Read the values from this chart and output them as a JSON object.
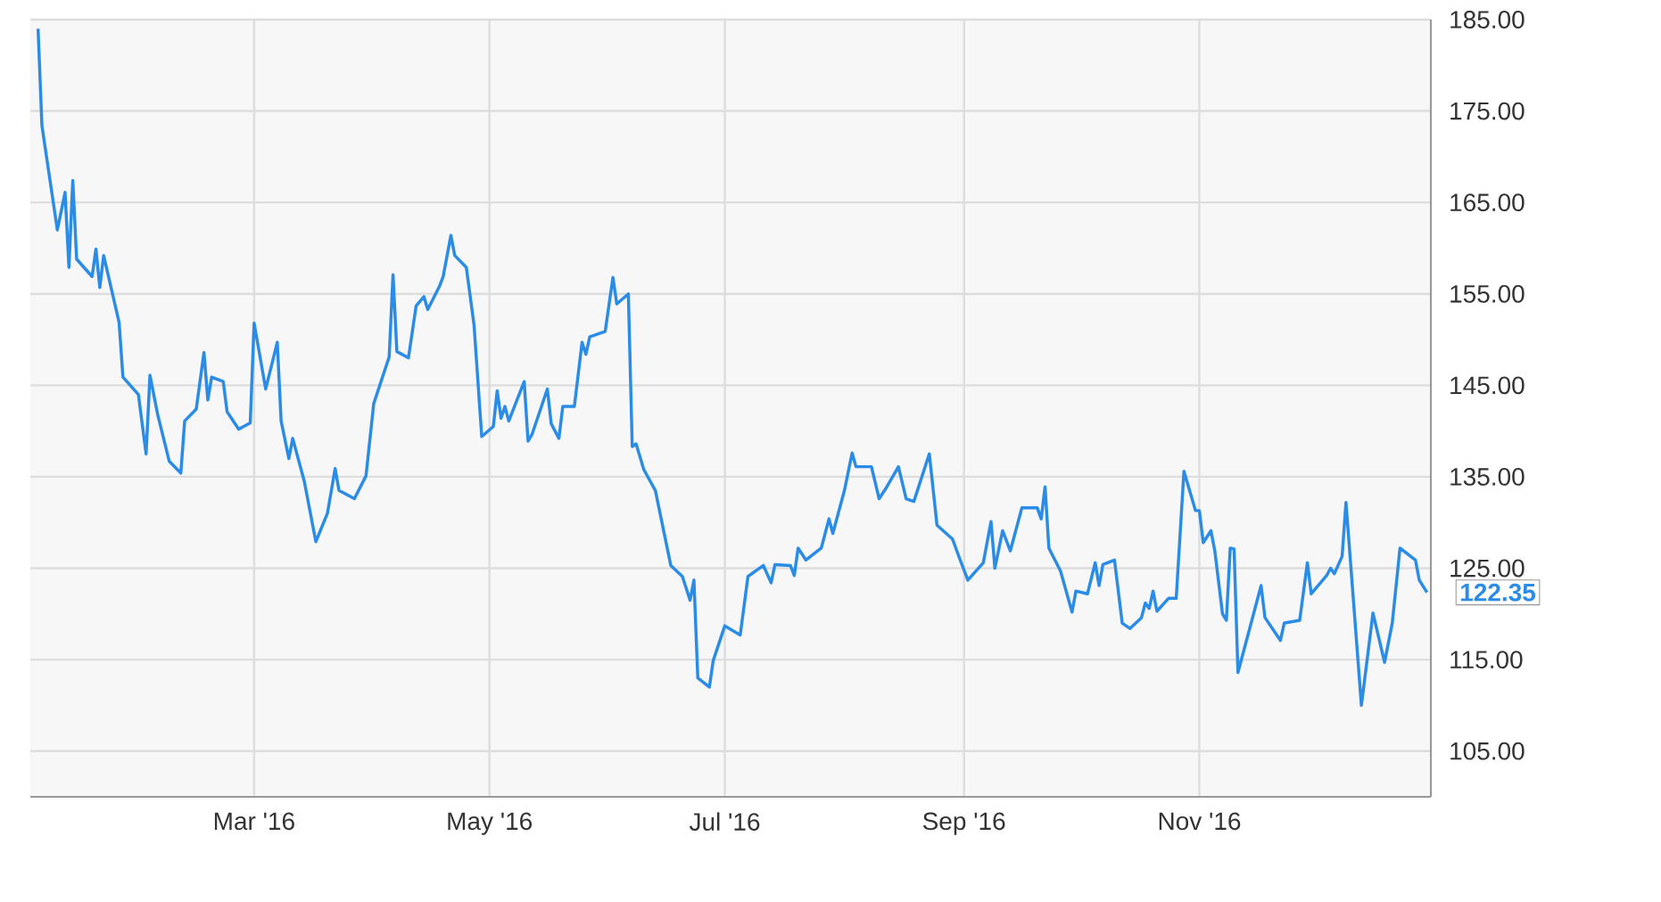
{
  "chart_data": {
    "type": "line",
    "x": [
      "2016-01-05",
      "2016-01-06",
      "2016-01-08",
      "2016-01-10",
      "2016-01-12",
      "2016-01-13",
      "2016-01-14",
      "2016-01-15",
      "2016-01-19",
      "2016-01-20",
      "2016-01-21",
      "2016-01-22",
      "2016-01-26",
      "2016-01-27",
      "2016-01-31",
      "2016-02-02",
      "2016-02-03",
      "2016-02-05",
      "2016-02-08",
      "2016-02-11",
      "2016-02-12",
      "2016-02-15",
      "2016-02-17",
      "2016-02-18",
      "2016-02-19",
      "2016-02-22",
      "2016-02-23",
      "2016-02-26",
      "2016-02-29",
      "2016-03-01",
      "2016-03-04",
      "2016-03-07",
      "2016-03-08",
      "2016-03-10",
      "2016-03-11",
      "2016-03-14",
      "2016-03-17",
      "2016-03-20",
      "2016-03-22",
      "2016-03-23",
      "2016-03-27",
      "2016-03-30",
      "2016-04-01",
      "2016-04-05",
      "2016-04-06",
      "2016-04-07",
      "2016-04-10",
      "2016-04-12",
      "2016-04-14",
      "2016-04-15",
      "2016-04-18",
      "2016-04-19",
      "2016-04-21",
      "2016-04-22",
      "2016-04-25",
      "2016-04-27",
      "2016-04-29",
      "2016-05-02",
      "2016-05-03",
      "2016-05-04",
      "2016-05-05",
      "2016-05-06",
      "2016-05-10",
      "2016-05-11",
      "2016-05-12",
      "2016-05-16",
      "2016-05-17",
      "2016-05-19",
      "2016-05-20",
      "2016-05-23",
      "2016-05-25",
      "2016-05-26",
      "2016-05-27",
      "2016-05-31",
      "2016-06-02",
      "2016-06-03",
      "2016-06-06",
      "2016-06-07",
      "2016-06-08",
      "2016-06-10",
      "2016-06-13",
      "2016-06-17",
      "2016-06-20",
      "2016-06-22",
      "2016-06-23",
      "2016-06-24",
      "2016-06-27",
      "2016-06-28",
      "2016-07-01",
      "2016-07-05",
      "2016-07-07",
      "2016-07-11",
      "2016-07-13",
      "2016-07-14",
      "2016-07-18",
      "2016-07-19",
      "2016-07-20",
      "2016-07-22",
      "2016-07-26",
      "2016-07-28",
      "2016-07-29",
      "2016-08-01",
      "2016-08-03",
      "2016-08-04",
      "2016-08-08",
      "2016-08-10",
      "2016-08-12",
      "2016-08-15",
      "2016-08-17",
      "2016-08-19",
      "2016-08-23",
      "2016-08-25",
      "2016-08-29",
      "2016-08-31",
      "2016-09-02",
      "2016-09-06",
      "2016-09-08",
      "2016-09-09",
      "2016-09-11",
      "2016-09-13",
      "2016-09-16",
      "2016-09-20",
      "2016-09-21",
      "2016-09-22",
      "2016-09-23",
      "2016-09-26",
      "2016-09-29",
      "2016-09-30",
      "2016-10-03",
      "2016-10-05",
      "2016-10-06",
      "2016-10-07",
      "2016-10-10",
      "2016-10-12",
      "2016-10-14",
      "2016-10-17",
      "2016-10-18",
      "2016-10-19",
      "2016-10-20",
      "2016-10-21",
      "2016-10-24",
      "2016-10-26",
      "2016-10-28",
      "2016-10-31",
      "2016-11-01",
      "2016-11-02",
      "2016-11-04",
      "2016-11-05",
      "2016-11-07",
      "2016-11-08",
      "2016-11-09",
      "2016-11-10",
      "2016-11-11",
      "2016-11-17",
      "2016-11-18",
      "2016-11-22",
      "2016-11-23",
      "2016-11-27",
      "2016-11-29",
      "2016-11-30",
      "2016-12-04",
      "2016-12-05",
      "2016-12-06",
      "2016-12-08",
      "2016-12-09",
      "2016-12-13",
      "2016-12-16",
      "2016-12-19",
      "2016-12-21",
      "2016-12-23",
      "2016-12-27",
      "2016-12-28",
      "2016-12-30"
    ],
    "series": [
      {
        "color": "#2a8ce6",
        "values": [
          184.0,
          173.4,
          167.7,
          162.0,
          166.1,
          157.9,
          167.4,
          158.8,
          156.9,
          159.9,
          155.7,
          159.2,
          151.9,
          145.9,
          144.0,
          137.5,
          146.1,
          141.8,
          136.7,
          135.4,
          141.1,
          142.4,
          148.6,
          143.4,
          145.9,
          145.4,
          142.1,
          140.2,
          140.9,
          151.8,
          144.6,
          149.7,
          141.1,
          137.0,
          139.2,
          134.5,
          127.9,
          131.0,
          135.9,
          133.5,
          132.6,
          135.1,
          143.0,
          148.1,
          157.1,
          148.7,
          148.0,
          153.7,
          154.7,
          153.3,
          155.8,
          156.9,
          161.4,
          159.2,
          157.9,
          151.6,
          139.4,
          140.5,
          144.4,
          141.4,
          142.7,
          141.1,
          145.4,
          138.9,
          139.6,
          144.6,
          140.8,
          139.2,
          142.7,
          142.7,
          149.7,
          148.4,
          150.3,
          150.9,
          156.8,
          153.9,
          155.0,
          138.3,
          138.6,
          135.8,
          133.5,
          125.3,
          124.1,
          121.5,
          123.7,
          113.0,
          112.0,
          114.9,
          118.7,
          117.7,
          124.1,
          125.3,
          123.4,
          125.4,
          125.3,
          124.2,
          127.2,
          125.9,
          127.2,
          130.4,
          128.8,
          133.5,
          137.6,
          136.1,
          136.1,
          132.6,
          133.9,
          136.1,
          132.6,
          132.3,
          137.5,
          129.7,
          128.2,
          125.9,
          123.7,
          125.6,
          130.1,
          125.0,
          129.1,
          126.9,
          131.6,
          131.6,
          130.4,
          133.9,
          127.2,
          124.7,
          120.2,
          122.5,
          122.2,
          125.6,
          123.1,
          125.4,
          125.9,
          119.0,
          118.4,
          119.6,
          121.2,
          120.6,
          122.5,
          120.3,
          121.7,
          121.7,
          135.6,
          131.3,
          131.3,
          127.8,
          129.1,
          126.9,
          120.0,
          119.3,
          127.2,
          127.1,
          113.6,
          123.1,
          119.6,
          117.1,
          119.0,
          119.3,
          125.6,
          122.2,
          124.2,
          125.0,
          124.4,
          126.3,
          132.2,
          110.0,
          120.1,
          114.7,
          119.0,
          127.2,
          125.9,
          123.7,
          122.35
        ]
      }
    ],
    "xlim": [
      "2016-01-03",
      "2016-12-31"
    ],
    "xticks": [
      {
        "value": "2016-03-01",
        "label": "Mar '16"
      },
      {
        "value": "2016-05-01",
        "label": "May '16"
      },
      {
        "value": "2016-07-01",
        "label": "Jul '16"
      },
      {
        "value": "2016-09-01",
        "label": "Sep '16"
      },
      {
        "value": "2016-11-01",
        "label": "Nov '16"
      }
    ],
    "ylim": [
      100,
      185
    ],
    "yticks": [
      {
        "value": 105,
        "label": "105.00"
      },
      {
        "value": 115,
        "label": "115.00"
      },
      {
        "value": 125,
        "label": "125.00"
      },
      {
        "value": 135,
        "label": "135.00"
      },
      {
        "value": 145,
        "label": "145.00"
      },
      {
        "value": 155,
        "label": "155.00"
      },
      {
        "value": 165,
        "label": "165.00"
      },
      {
        "value": 175,
        "label": "175.00"
      },
      {
        "value": 185,
        "label": "185.00"
      }
    ],
    "grid": true,
    "line_style": "solid",
    "annotations": [
      {
        "text": "122.35",
        "x": "2016-12-30",
        "y": 122.35
      }
    ]
  }
}
